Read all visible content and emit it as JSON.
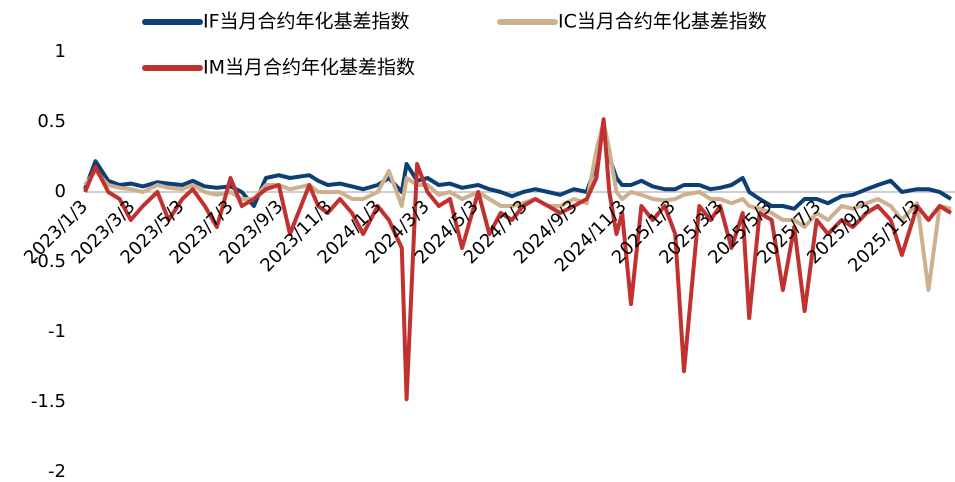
{
  "chart_data": {
    "type": "line",
    "x": [
      "2023/1/3",
      "2023/1/16",
      "2023/2/1",
      "2023/2/15",
      "2023/3/1",
      "2023/3/16",
      "2023/4/3",
      "2023/4/17",
      "2023/5/4",
      "2023/5/17",
      "2023/6/1",
      "2023/6/16",
      "2023/7/3",
      "2023/7/17",
      "2023/8/1",
      "2023/8/16",
      "2023/9/1",
      "2023/9/15",
      "2023/10/9",
      "2023/10/20",
      "2023/11/1",
      "2023/11/16",
      "2023/12/1",
      "2023/12/15",
      "2024/1/2",
      "2024/1/16",
      "2024/2/1",
      "2024/2/7",
      "2024/2/20",
      "2024/3/4",
      "2024/3/18",
      "2024/4/1",
      "2024/4/16",
      "2024/5/6",
      "2024/5/20",
      "2024/6/3",
      "2024/6/17",
      "2024/7/1",
      "2024/7/16",
      "2024/8/1",
      "2024/8/16",
      "2024/9/2",
      "2024/9/18",
      "2024/9/30",
      "2024/10/9",
      "2024/10/16",
      "2024/10/25",
      "2024/11/1",
      "2024/11/12",
      "2024/11/25",
      "2024/12/9",
      "2024/12/24",
      "2025/1/6",
      "2025/1/17",
      "2025/2/5",
      "2025/2/19",
      "2025/3/3",
      "2025/3/17",
      "2025/3/31",
      "2025/4/8",
      "2025/4/21",
      "2025/5/6",
      "2025/5/20",
      "2025/6/3",
      "2025/6/16",
      "2025/7/1",
      "2025/7/15",
      "2025/8/1",
      "2025/8/15",
      "2025/9/1",
      "2025/9/15",
      "2025/10/1",
      "2025/10/15",
      "2025/11/3",
      "2025/11/17",
      "2025/12/1",
      "2025/12/15"
    ],
    "series": [
      {
        "name": "IF当月合约年化基差指数",
        "color": "#0b3f75",
        "values": [
          0.02,
          0.22,
          0.08,
          0.05,
          0.06,
          0.04,
          0.07,
          0.06,
          0.05,
          0.08,
          0.04,
          0.03,
          0.04,
          0.0,
          -0.1,
          0.1,
          0.12,
          0.1,
          0.12,
          0.08,
          0.05,
          0.06,
          0.04,
          0.02,
          0.05,
          0.1,
          0.0,
          0.2,
          0.08,
          0.1,
          0.05,
          0.06,
          0.03,
          0.05,
          0.02,
          0.0,
          -0.03,
          0.0,
          0.02,
          0.0,
          -0.02,
          0.02,
          0.0,
          0.2,
          0.5,
          0.25,
          0.1,
          0.05,
          0.05,
          0.08,
          0.04,
          0.02,
          0.02,
          0.05,
          0.05,
          0.02,
          0.03,
          0.05,
          0.1,
          0.0,
          -0.05,
          -0.1,
          -0.1,
          -0.12,
          -0.05,
          -0.05,
          -0.08,
          -0.03,
          -0.02,
          0.02,
          0.05,
          0.08,
          0.0,
          0.02,
          0.02,
          0.0,
          -0.05
        ]
      },
      {
        "name": "IC当月合约年化基差指数",
        "color": "#cdb08e",
        "values": [
          0.05,
          0.15,
          0.05,
          0.03,
          0.02,
          0.0,
          0.05,
          0.03,
          0.02,
          0.05,
          0.0,
          -0.02,
          0.0,
          -0.05,
          -0.05,
          0.05,
          0.05,
          0.02,
          0.05,
          0.0,
          0.0,
          0.0,
          -0.05,
          -0.05,
          0.0,
          0.15,
          -0.1,
          0.1,
          0.05,
          0.05,
          -0.02,
          0.0,
          -0.05,
          0.0,
          -0.05,
          -0.1,
          -0.1,
          -0.08,
          -0.05,
          -0.1,
          -0.1,
          -0.05,
          -0.08,
          0.3,
          0.5,
          0.3,
          0.0,
          -0.05,
          0.0,
          -0.02,
          -0.05,
          -0.06,
          -0.05,
          -0.02,
          0.0,
          -0.05,
          -0.05,
          -0.08,
          -0.05,
          -0.1,
          -0.12,
          -0.15,
          -0.2,
          -0.2,
          -0.25,
          -0.15,
          -0.2,
          -0.1,
          -0.12,
          -0.08,
          -0.05,
          -0.1,
          -0.2,
          -0.08,
          -0.7,
          -0.1,
          -0.12
        ]
      },
      {
        "name": "IM当月合约年化基差指数",
        "color": "#c0312f",
        "values": [
          0.0,
          0.18,
          0.0,
          -0.05,
          -0.2,
          -0.1,
          0.0,
          -0.2,
          -0.05,
          0.02,
          -0.1,
          -0.25,
          0.1,
          -0.1,
          -0.05,
          0.02,
          0.05,
          -0.3,
          0.05,
          -0.1,
          -0.15,
          -0.05,
          -0.15,
          -0.3,
          -0.1,
          -0.2,
          -0.4,
          -1.48,
          0.2,
          0.0,
          -0.1,
          -0.05,
          -0.4,
          0.0,
          -0.3,
          -0.15,
          -0.2,
          -0.1,
          -0.05,
          -0.1,
          -0.15,
          -0.1,
          -0.05,
          0.1,
          0.52,
          0.0,
          -0.3,
          -0.15,
          -0.8,
          -0.1,
          -0.2,
          -0.1,
          -0.3,
          -1.28,
          -0.1,
          -0.2,
          -0.1,
          -0.4,
          -0.15,
          -0.9,
          -0.15,
          -0.2,
          -0.7,
          -0.25,
          -0.85,
          -0.2,
          -0.3,
          -0.2,
          -0.25,
          -0.15,
          -0.1,
          -0.2,
          -0.45,
          -0.1,
          -0.2,
          -0.1,
          -0.15
        ]
      }
    ],
    "xlim": [
      "2023/1/3",
      "2025/12/20"
    ],
    "xticks": [
      "2023/1/3",
      "2023/3/3",
      "2023/5/3",
      "2023/7/3",
      "2023/9/3",
      "2023/11/3",
      "2024/1/3",
      "2024/3/3",
      "2024/5/3",
      "2024/7/3",
      "2024/9/3",
      "2024/11/3",
      "2025/1/3",
      "2025/3/3",
      "2025/5/3",
      "2025/7/3",
      "2025/9/3",
      "2025/11/3"
    ],
    "ylim": [
      -2,
      1
    ],
    "yticks": [
      1,
      0.5,
      0,
      -0.5,
      -1,
      -1.5,
      -2
    ]
  }
}
